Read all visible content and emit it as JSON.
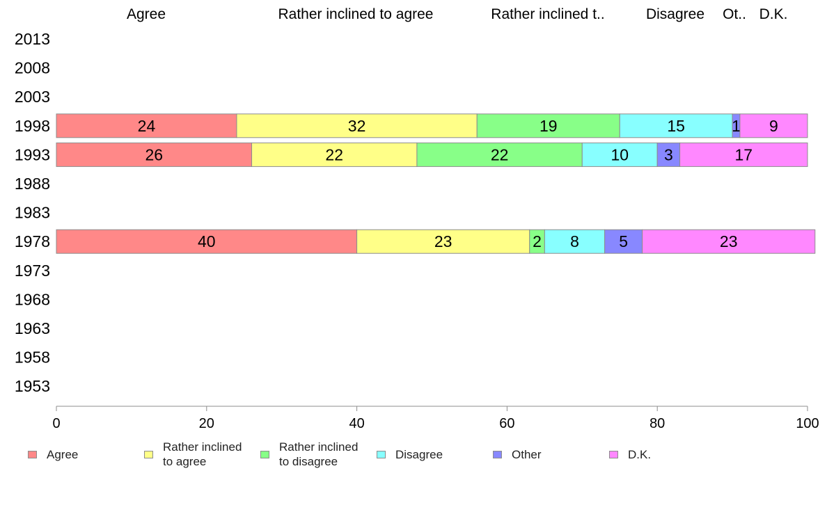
{
  "chart_data": {
    "type": "bar",
    "orientation": "horizontal",
    "stacked": true,
    "categories": [
      "2013",
      "2008",
      "2003",
      "1998",
      "1993",
      "1988",
      "1983",
      "1978",
      "1973",
      "1968",
      "1963",
      "1958",
      "1953"
    ],
    "top_labels": [
      "Agree",
      "Rather inclined to agree",
      "Rather inclined t..",
      "Disagree",
      "Ot..",
      "D.K."
    ],
    "series": [
      {
        "name": "Agree",
        "legend_lines": [
          "Agree"
        ],
        "color": "#ff8888",
        "values": [
          null,
          null,
          null,
          24,
          26,
          null,
          null,
          40,
          null,
          null,
          null,
          null,
          null
        ]
      },
      {
        "name": "Rather inclined to agree",
        "legend_lines": [
          "Rather inclined",
          "to agree"
        ],
        "color": "#ffff88",
        "values": [
          null,
          null,
          null,
          32,
          22,
          null,
          null,
          23,
          null,
          null,
          null,
          null,
          null
        ]
      },
      {
        "name": "Rather inclined to disagree",
        "legend_lines": [
          "Rather inclined",
          "to disagree"
        ],
        "color": "#88ff88",
        "values": [
          null,
          null,
          null,
          19,
          22,
          null,
          null,
          2,
          null,
          null,
          null,
          null,
          null
        ]
      },
      {
        "name": "Disagree",
        "legend_lines": [
          "Disagree"
        ],
        "color": "#88ffff",
        "values": [
          null,
          null,
          null,
          15,
          10,
          null,
          null,
          8,
          null,
          null,
          null,
          null,
          null
        ]
      },
      {
        "name": "Other",
        "legend_lines": [
          "Other"
        ],
        "color": "#8888ff",
        "values": [
          null,
          null,
          null,
          1,
          3,
          null,
          null,
          5,
          null,
          null,
          null,
          null,
          null
        ]
      },
      {
        "name": "D.K.",
        "legend_lines": [
          "D.K."
        ],
        "color": "#ff88ff",
        "values": [
          null,
          null,
          null,
          9,
          17,
          null,
          null,
          23,
          null,
          null,
          null,
          null,
          null
        ]
      }
    ],
    "xlim": [
      0,
      100
    ],
    "xticks": [
      0,
      20,
      40,
      60,
      80,
      100
    ],
    "xlabel": "",
    "ylabel": "",
    "grid": false,
    "legend_position": "bottom"
  }
}
